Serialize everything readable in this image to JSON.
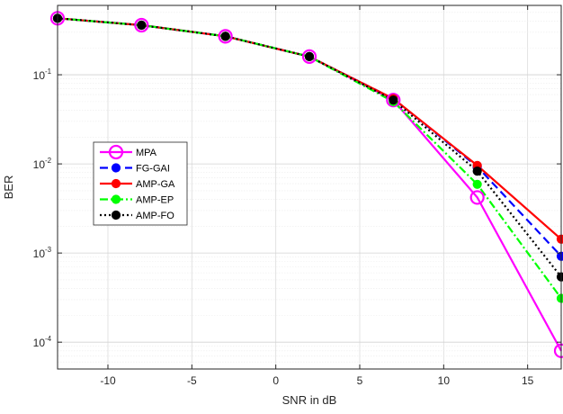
{
  "chart_data": {
    "type": "line",
    "xlabel": "SNR in dB",
    "ylabel": "BER",
    "xlim": [
      -13,
      17
    ],
    "ylim": [
      5e-05,
      0.6
    ],
    "yscale": "log",
    "xticks": [
      -10,
      -5,
      0,
      5,
      10,
      15
    ],
    "xtick_labels": [
      "-10",
      "-5",
      "0",
      "5",
      "10",
      "15"
    ],
    "yticks": [
      0.0001,
      0.001,
      0.01,
      0.1
    ],
    "ytick_labels": [
      "10",
      "10",
      "10",
      "10"
    ],
    "ytick_exponents": [
      "-4",
      "-3",
      "-2",
      "-1"
    ],
    "grid": true,
    "legend_position": "middle-left",
    "series": [
      {
        "name": "MPA",
        "color": "#ff00ff",
        "linestyle": "solid",
        "marker": "open-circle",
        "x": [
          -13,
          -8,
          -3,
          2,
          7,
          12,
          17
        ],
        "y": [
          0.43,
          0.36,
          0.27,
          0.16,
          0.052,
          0.0042,
          8e-05
        ]
      },
      {
        "name": "FG-GAI",
        "color": "#0000ff",
        "linestyle": "dashed",
        "marker": "filled-circle",
        "x": [
          -13,
          -8,
          -3,
          2,
          7,
          12,
          17
        ],
        "y": [
          0.43,
          0.36,
          0.27,
          0.16,
          0.054,
          0.0093,
          0.00092
        ]
      },
      {
        "name": "AMP-GA",
        "color": "#ff0000",
        "linestyle": "solid",
        "marker": "filled-circle",
        "x": [
          -13,
          -8,
          -3,
          2,
          7,
          12,
          17
        ],
        "y": [
          0.43,
          0.36,
          0.27,
          0.16,
          0.054,
          0.0096,
          0.00143
        ]
      },
      {
        "name": "AMP-EP",
        "color": "#00ff00",
        "linestyle": "dashdot",
        "marker": "filled-circle",
        "x": [
          -13,
          -8,
          -3,
          2,
          7,
          12,
          17
        ],
        "y": [
          0.43,
          0.36,
          0.27,
          0.16,
          0.05,
          0.0059,
          0.00031
        ]
      },
      {
        "name": "AMP-FO",
        "color": "#000000",
        "linestyle": "dotted",
        "marker": "filled-circle",
        "x": [
          -13,
          -8,
          -3,
          2,
          7,
          12,
          17
        ],
        "y": [
          0.43,
          0.36,
          0.27,
          0.16,
          0.052,
          0.0083,
          0.00054
        ]
      }
    ]
  }
}
